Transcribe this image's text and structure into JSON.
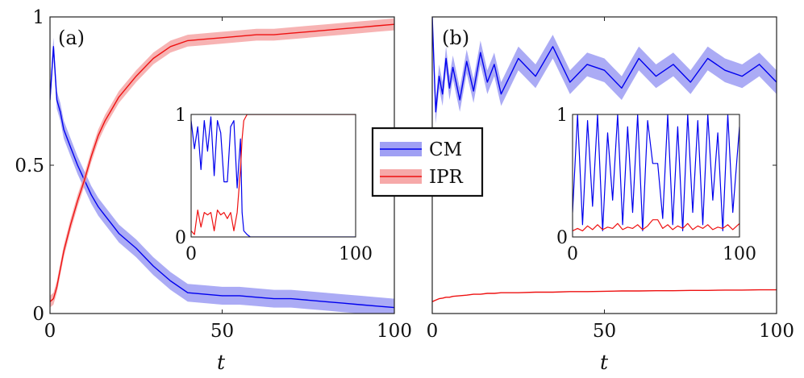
{
  "colors": {
    "cm": "#0000ee",
    "ipr": "#ee1111",
    "cm_band": "#8f8ff2",
    "ipr_band": "#f49a9a"
  },
  "legend": {
    "items": [
      {
        "label": "CM",
        "color": "#0000ee"
      },
      {
        "label": "IPR",
        "color": "#ee1111"
      }
    ]
  },
  "chart_data": [
    {
      "type": "line",
      "panel_label": "(a)",
      "xlabel": "t",
      "ylabel": "",
      "xlim": [
        0,
        100
      ],
      "ylim": [
        0,
        1
      ],
      "xticks": [
        "0",
        "50",
        "100"
      ],
      "yticks": [
        "0",
        "0.5",
        "1"
      ],
      "x": [
        0,
        1,
        2,
        3,
        4,
        6,
        8,
        10,
        12,
        14,
        16,
        18,
        20,
        25,
        30,
        35,
        40,
        45,
        50,
        55,
        60,
        65,
        70,
        75,
        80,
        85,
        90,
        95,
        100
      ],
      "series": [
        {
          "name": "CM",
          "band": 0.03,
          "values": [
            0.72,
            0.9,
            0.72,
            0.68,
            0.62,
            0.56,
            0.5,
            0.45,
            0.4,
            0.36,
            0.33,
            0.3,
            0.27,
            0.22,
            0.16,
            0.11,
            0.07,
            0.065,
            0.06,
            0.06,
            0.055,
            0.05,
            0.05,
            0.045,
            0.04,
            0.035,
            0.03,
            0.025,
            0.02
          ]
        },
        {
          "name": "IPR",
          "band": 0.02,
          "values": [
            0.04,
            0.05,
            0.09,
            0.15,
            0.21,
            0.3,
            0.38,
            0.45,
            0.53,
            0.6,
            0.65,
            0.69,
            0.73,
            0.8,
            0.86,
            0.9,
            0.92,
            0.925,
            0.93,
            0.935,
            0.94,
            0.94,
            0.945,
            0.95,
            0.955,
            0.96,
            0.965,
            0.97,
            0.975
          ]
        }
      ],
      "inset": {
        "xlim": [
          0,
          100
        ],
        "ylim": [
          0,
          1
        ],
        "xticks": [
          "0",
          "100"
        ],
        "yticks": [
          "0",
          "1"
        ],
        "x": [
          0,
          2,
          4,
          6,
          8,
          10,
          12,
          14,
          16,
          18,
          20,
          22,
          24,
          26,
          28,
          30,
          31,
          32,
          34,
          36,
          40,
          50,
          60,
          70,
          80,
          90,
          100
        ],
        "series": [
          {
            "name": "CM",
            "values": [
              0.95,
              0.72,
              0.9,
              0.55,
              0.95,
              0.7,
              0.98,
              0.5,
              0.95,
              0.85,
              0.45,
              0.45,
              0.9,
              0.95,
              0.4,
              0.8,
              0.2,
              0.05,
              0.02,
              0.0,
              0.0,
              0.0,
              0.0,
              0.0,
              0.0,
              0.0,
              0.0
            ]
          },
          {
            "name": "IPR",
            "values": [
              0.05,
              0.02,
              0.22,
              0.08,
              0.2,
              0.18,
              0.2,
              0.05,
              0.22,
              0.18,
              0.2,
              0.15,
              0.2,
              0.05,
              0.2,
              0.55,
              0.8,
              0.95,
              1.0,
              1.0,
              1.0,
              1.0,
              1.0,
              1.0,
              1.0,
              1.0,
              1.0
            ]
          }
        ]
      }
    },
    {
      "type": "line",
      "panel_label": "(b)",
      "xlabel": "t",
      "ylabel": "",
      "xlim": [
        0,
        100
      ],
      "ylim": [
        0,
        1
      ],
      "xticks": [
        "0",
        "50",
        "100"
      ],
      "yticks": [],
      "x": [
        0,
        1,
        2,
        3,
        4,
        5,
        6,
        8,
        10,
        12,
        14,
        16,
        18,
        20,
        25,
        30,
        35,
        40,
        45,
        50,
        55,
        60,
        65,
        70,
        75,
        80,
        85,
        90,
        95,
        100
      ],
      "series": [
        {
          "name": "CM",
          "band": 0.04,
          "values": [
            1.0,
            0.68,
            0.8,
            0.74,
            0.86,
            0.76,
            0.83,
            0.72,
            0.85,
            0.75,
            0.88,
            0.78,
            0.84,
            0.74,
            0.86,
            0.8,
            0.9,
            0.78,
            0.84,
            0.82,
            0.76,
            0.86,
            0.8,
            0.84,
            0.78,
            0.86,
            0.82,
            0.8,
            0.84,
            0.78
          ]
        },
        {
          "name": "IPR",
          "band": 0.0,
          "values": [
            0.04,
            0.045,
            0.05,
            0.052,
            0.055,
            0.055,
            0.058,
            0.06,
            0.062,
            0.065,
            0.065,
            0.068,
            0.068,
            0.07,
            0.07,
            0.072,
            0.072,
            0.074,
            0.074,
            0.075,
            0.076,
            0.076,
            0.077,
            0.077,
            0.078,
            0.078,
            0.079,
            0.079,
            0.08,
            0.08
          ]
        }
      ],
      "inset": {
        "xlim": [
          0,
          100
        ],
        "ylim": [
          0,
          1
        ],
        "xticks": [
          "0",
          "100"
        ],
        "yticks": [
          "0",
          "1"
        ],
        "x": [
          0,
          3,
          6,
          9,
          12,
          15,
          18,
          21,
          24,
          27,
          30,
          33,
          36,
          39,
          42,
          45,
          48,
          51,
          54,
          57,
          60,
          63,
          66,
          69,
          72,
          75,
          78,
          81,
          84,
          87,
          90,
          93,
          96,
          100
        ],
        "series": [
          {
            "name": "CM",
            "values": [
              0.2,
              1.0,
              0.1,
              0.95,
              0.25,
              1.0,
              0.05,
              0.85,
              0.3,
              1.0,
              0.1,
              0.9,
              0.2,
              1.0,
              0.05,
              0.95,
              0.6,
              0.6,
              0.15,
              1.0,
              0.1,
              0.9,
              0.05,
              1.0,
              0.2,
              0.95,
              0.1,
              1.0,
              0.3,
              0.85,
              0.05,
              1.0,
              0.2,
              0.9
            ]
          },
          {
            "name": "IPR",
            "values": [
              0.05,
              0.07,
              0.05,
              0.09,
              0.06,
              0.1,
              0.06,
              0.08,
              0.07,
              0.11,
              0.06,
              0.08,
              0.07,
              0.1,
              0.06,
              0.09,
              0.14,
              0.14,
              0.07,
              0.1,
              0.06,
              0.09,
              0.07,
              0.11,
              0.06,
              0.09,
              0.07,
              0.1,
              0.06,
              0.08,
              0.07,
              0.1,
              0.06,
              0.11
            ]
          }
        ]
      }
    }
  ]
}
